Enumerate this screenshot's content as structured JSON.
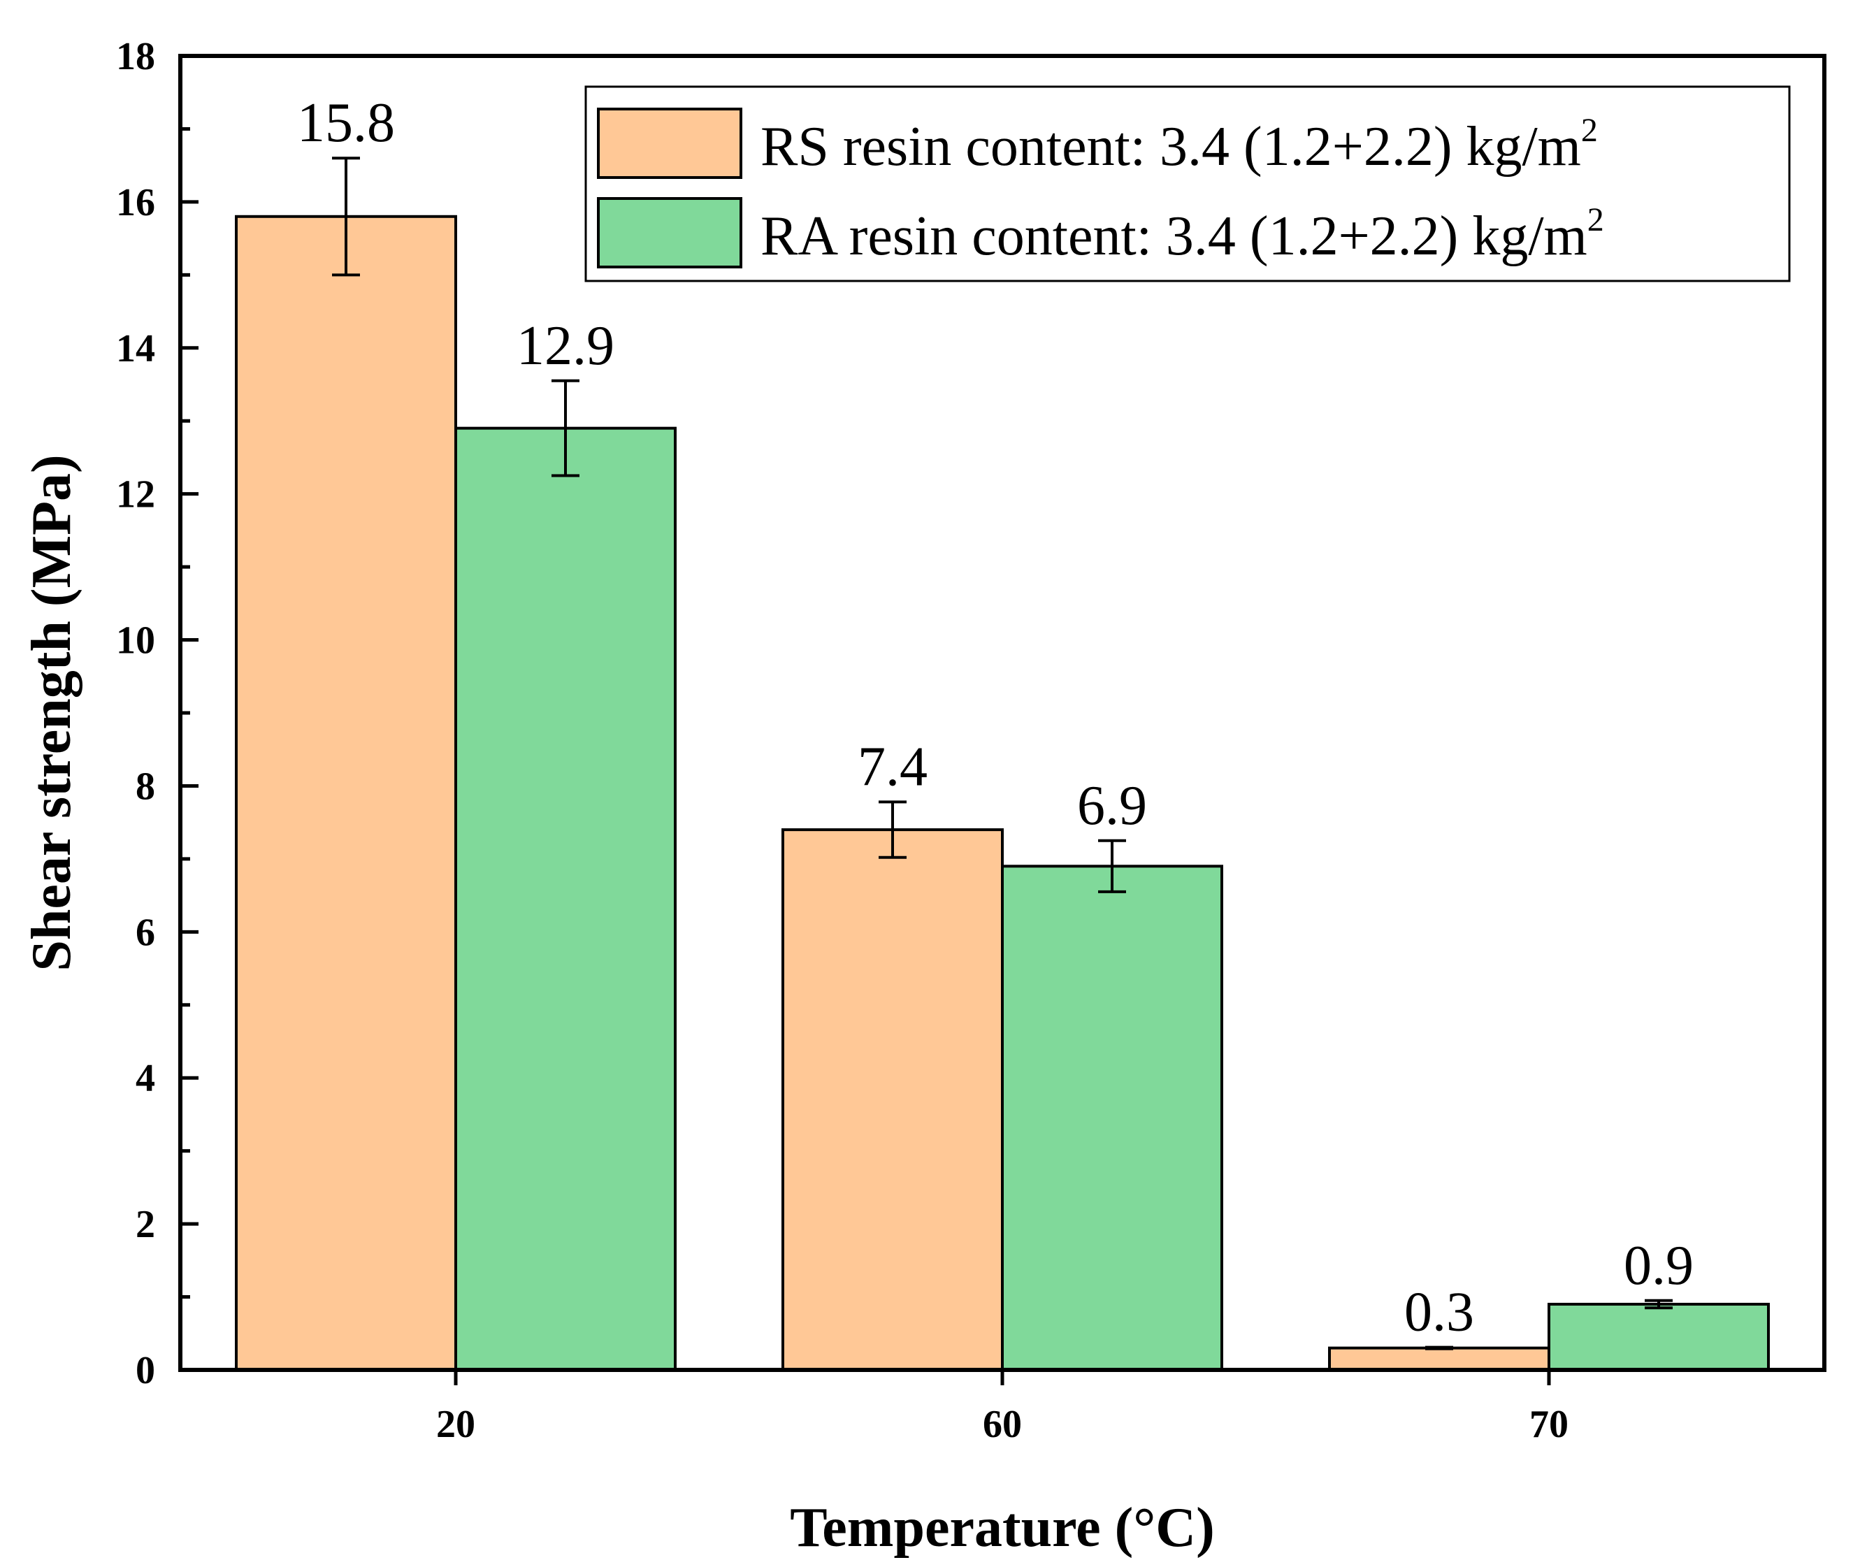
{
  "chart_data": {
    "type": "bar",
    "title": "",
    "xlabel": "Temperature (°C)",
    "ylabel": "Shear strength (MPa)",
    "categories": [
      "20",
      "60",
      "70"
    ],
    "ylim": [
      0,
      18
    ],
    "yticks": [
      "0",
      "2",
      "4",
      "6",
      "8",
      "10",
      "12",
      "14",
      "16",
      "18"
    ],
    "yticks_values": [
      0,
      2,
      4,
      6,
      8,
      10,
      12,
      14,
      16,
      18
    ],
    "legend_position": "top-right",
    "grid": false,
    "series": [
      {
        "name": "RS resin content: 3.4 (1.2+2.2) kg/m",
        "name_superscript": "2",
        "color": "#FFC896",
        "values": [
          15.8,
          7.4,
          0.3
        ],
        "value_labels": [
          "15.8",
          "7.4",
          "0.3"
        ],
        "error": [
          0.8,
          0.38,
          0.01
        ]
      },
      {
        "name": "RA resin content: 3.4 (1.2+2.2) kg/m",
        "name_superscript": "2",
        "color": "#80D99A",
        "values": [
          12.9,
          6.9,
          0.9
        ],
        "value_labels": [
          "12.9",
          "6.9",
          "0.9"
        ],
        "error": [
          0.65,
          0.35,
          0.05
        ]
      }
    ]
  }
}
